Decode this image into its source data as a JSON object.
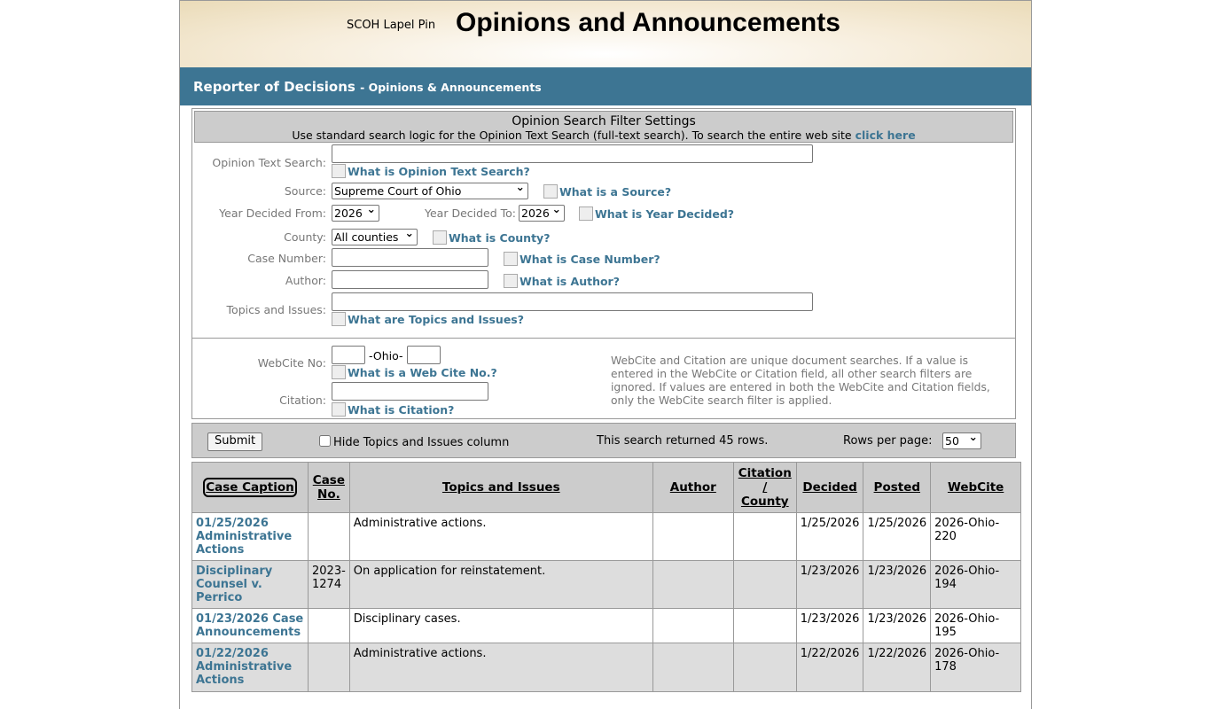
{
  "header": {
    "logo_alt": "SCOH Lapel Pin",
    "title": "Opinions and Announcements"
  },
  "bar": {
    "title": "Reporter of Decisions",
    "subtitle": "- Opinions & Announcements"
  },
  "filter": {
    "heading": "Opinion Search Filter Settings",
    "subheading": "Use standard search logic for the Opinion Text Search (full-text search). To search the entire web site",
    "click_here": "click here",
    "text_search_label": "Opinion Text Search:",
    "text_search_help": "What is Opinion Text Search?",
    "source_label": "Source:",
    "source_value": "Supreme Court of Ohio",
    "source_help": "What is a Source?",
    "year_from_label": "Year Decided From:",
    "year_from": "2026",
    "year_to_label": "Year Decided To:",
    "year_to": "2026",
    "year_help": "What is Year Decided?",
    "county_label": "County:",
    "county_value": "All counties",
    "county_help": "What is County?",
    "case_label": "Case Number:",
    "case_help": "What is Case Number?",
    "author_label": "Author:",
    "author_help": "What is Author?",
    "topics_label": "Topics and Issues:",
    "topics_help": "What are Topics and Issues?",
    "webcite_label": "WebCite No:",
    "webcite_mid": "-Ohio-",
    "webcite_help": "What is a Web Cite No.?",
    "citation_label": "Citation:",
    "citation_help": "What is Citation?",
    "note": "WebCite and Citation are unique document searches. If a value is entered in the WebCite or Citation field, all other search filters are ignored. If values are entered in both the WebCite and Citation fields, only the WebCite search filter is applied."
  },
  "toolbar": {
    "submit": "Submit",
    "hide_topics": "Hide Topics and Issues column",
    "result": "This search returned 45 rows.",
    "rows_label": "Rows per page:",
    "rows_value": "50"
  },
  "table": {
    "headers": [
      "Case Caption",
      "Case No.",
      "Topics and Issues",
      "Author",
      "Citation / County",
      "Decided",
      "Posted",
      "WebCite"
    ],
    "rows": [
      {
        "caption": "01/25/2026 Administrative Actions",
        "case_no": "",
        "topics": "Administrative actions.",
        "author": "",
        "citation": "",
        "decided": "1/25/2026",
        "posted": "1/25/2026",
        "webcite": "2026-Ohio-220"
      },
      {
        "caption": "Disciplinary Counsel v. Perrico",
        "case_no": "2023-1274",
        "topics": "On application for reinstatement.",
        "author": "",
        "citation": "",
        "decided": "1/23/2026",
        "posted": "1/23/2026",
        "webcite": "2026-Ohio-194"
      },
      {
        "caption": "01/23/2026 Case Announcements",
        "case_no": "",
        "topics": "Disciplinary cases.",
        "author": "",
        "citation": "",
        "decided": "1/23/2026",
        "posted": "1/23/2026",
        "webcite": "2026-Ohio-195"
      },
      {
        "caption": "01/22/2026 Administrative Actions",
        "case_no": "",
        "topics": "Administrative actions.",
        "author": "",
        "citation": "",
        "decided": "1/22/2026",
        "posted": "1/22/2026",
        "webcite": "2026-Ohio-178"
      }
    ]
  }
}
